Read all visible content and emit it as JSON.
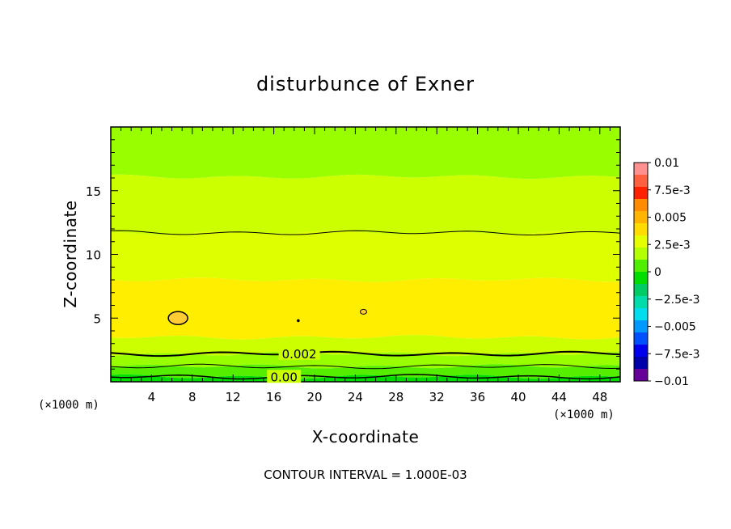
{
  "chart_data": {
    "type": "contour",
    "title": "disturbunce of Exner",
    "xlabel": "X-coordinate",
    "ylabel": "Z-coordinate",
    "x_unit": "(×1000 m)",
    "x_unit_right": "(×1000 m)",
    "xlim": [
      0,
      50
    ],
    "ylim": [
      0,
      20
    ],
    "xticks": [
      4,
      8,
      12,
      16,
      20,
      24,
      28,
      32,
      36,
      40,
      44,
      48
    ],
    "yticks": [
      5,
      10,
      15
    ],
    "colorbar": {
      "labels": [
        "0.01",
        "7.5e-3",
        "0.005",
        "2.5e-3",
        "0",
        "−2.5e-3",
        "−0.005",
        "−7.5e-3",
        "−0.01"
      ],
      "level_values": [
        0.01,
        0.0075,
        0.005,
        0.0025,
        0,
        -0.0025,
        -0.005,
        -0.0075,
        -0.01
      ],
      "colors": [
        "#ff9090",
        "#ff6040",
        "#ff2000",
        "#ff8c00",
        "#ffb400",
        "#ffdc00",
        "#e6ff00",
        "#b4ff00",
        "#50ee00",
        "#00dd00",
        "#00cc66",
        "#00ddaa",
        "#00ddee",
        "#0099ff",
        "#0050ff",
        "#0000ee",
        "#0000aa",
        "#660099"
      ]
    },
    "field_bands": [
      {
        "z_range": [
          16.1,
          20
        ],
        "color": "#99ff00"
      },
      {
        "z_range": [
          11.7,
          16.1
        ],
        "color": "#ccff00"
      },
      {
        "z_range": [
          8.0,
          11.7
        ],
        "color": "#ddff00"
      },
      {
        "z_range": [
          3.5,
          8.0
        ],
        "color": "#ffee00"
      },
      {
        "z_range": [
          2.2,
          3.5
        ],
        "color": "#ccff00"
      },
      {
        "z_range": [
          1.2,
          2.2
        ],
        "color": "#99ff00"
      },
      {
        "z_range": [
          0.4,
          1.2
        ],
        "color": "#55ee00"
      },
      {
        "z_range": [
          0,
          0.4
        ],
        "color": "#00dd00"
      }
    ],
    "contour_labels": [
      {
        "text": "0.002",
        "x": 18.5,
        "z": 2.1
      },
      {
        "text": "0.00",
        "x": 17.0,
        "z": 0.3
      }
    ],
    "note": "CONTOUR INTERVAL = 1.000E-03"
  }
}
